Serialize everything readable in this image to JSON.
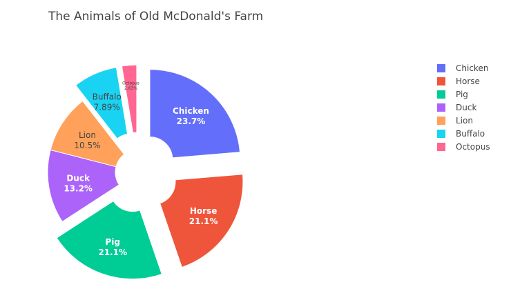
{
  "chart_data": {
    "type": "pie",
    "title": "The Animals of Old McDonald's Farm",
    "hole": true,
    "slices": [
      {
        "label": "Chicken",
        "value": 23.7,
        "text": "23.7%",
        "color": "#636efa",
        "pulled": true
      },
      {
        "label": "Horse",
        "value": 21.1,
        "text": "21.1%",
        "color": "#ef553b",
        "pulled": true
      },
      {
        "label": "Pig",
        "value": 21.1,
        "text": "21.1%",
        "color": "#00cc96",
        "pulled": true
      },
      {
        "label": "Duck",
        "value": 13.2,
        "text": "13.2%",
        "color": "#ab63fa",
        "pulled": false
      },
      {
        "label": "Lion",
        "value": 10.5,
        "text": "10.5%",
        "color": "#ffa15a",
        "pulled": false
      },
      {
        "label": "Buffalo",
        "value": 7.89,
        "text": "7.89%",
        "color": "#19d3f3",
        "pulled": true
      },
      {
        "label": "Octopus",
        "value": 2.63,
        "text": "2.63%",
        "color": "#ff6692",
        "pulled": true
      }
    ],
    "legend": {
      "position": "right",
      "items": [
        "Chicken",
        "Horse",
        "Pig",
        "Duck",
        "Lion",
        "Buffalo",
        "Octopus"
      ]
    }
  }
}
